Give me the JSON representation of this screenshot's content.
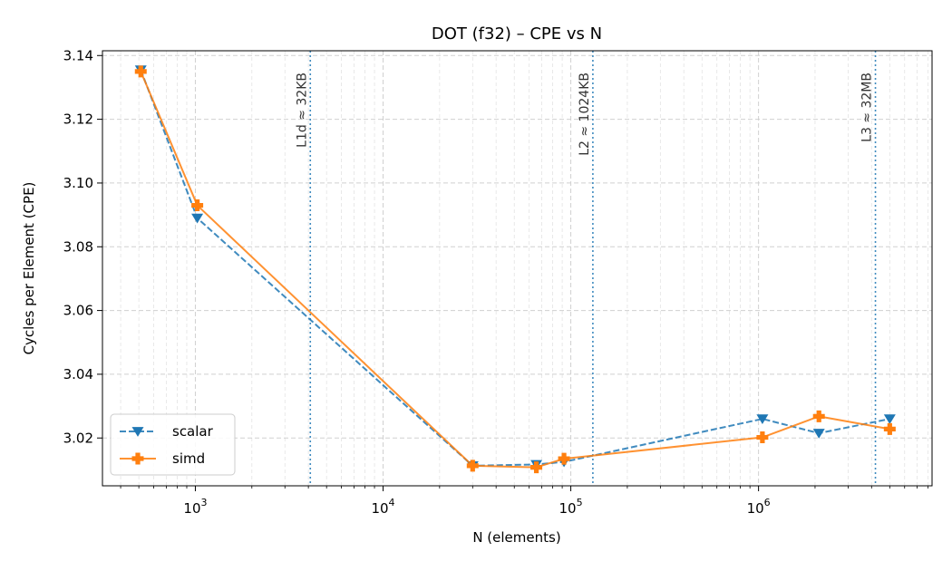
{
  "chart_data": {
    "type": "line",
    "title": "DOT (f32) – CPE vs N",
    "xlabel": "N (elements)",
    "ylabel": "Cycles per Element (CPE)",
    "xscale": "log",
    "xlim": [
      320,
      8400000
    ],
    "ylim": [
      3.005,
      3.1415
    ],
    "grid": true,
    "legend_position": "lower-left",
    "x_ticks": [
      {
        "value": 1000,
        "base": "10",
        "exp": "3"
      },
      {
        "value": 10000,
        "base": "10",
        "exp": "4"
      },
      {
        "value": 100000,
        "base": "10",
        "exp": "5"
      },
      {
        "value": 1000000,
        "base": "10",
        "exp": "6"
      }
    ],
    "y_ticks": [
      {
        "value": 3.02,
        "label": "3.02"
      },
      {
        "value": 3.04,
        "label": "3.04"
      },
      {
        "value": 3.06,
        "label": "3.06"
      },
      {
        "value": 3.08,
        "label": "3.08"
      },
      {
        "value": 3.1,
        "label": "3.10"
      },
      {
        "value": 3.12,
        "label": "3.12"
      },
      {
        "value": 3.14,
        "label": "3.14"
      }
    ],
    "series": [
      {
        "name": "scalar",
        "color": "#1f77b4",
        "line_style": "dashed",
        "marker": "triangle-down",
        "x": [
          512,
          1024,
          30000,
          65536,
          92000,
          1048576,
          2097152,
          5000000
        ],
        "y": [
          3.1355,
          3.089,
          3.0113,
          3.0117,
          3.0125,
          3.026,
          3.0215,
          3.026
        ]
      },
      {
        "name": "simd",
        "color": "#ff7f0e",
        "line_style": "solid",
        "marker": "plus",
        "x": [
          512,
          1024,
          30000,
          65536,
          92000,
          1048576,
          2097152,
          5000000
        ],
        "y": [
          3.135,
          3.093,
          3.0113,
          3.0108,
          3.0135,
          3.0202,
          3.0268,
          3.0228
        ]
      }
    ],
    "reference_lines": [
      {
        "x": 4096,
        "label": "L1d ≈ 32KB"
      },
      {
        "x": 131072,
        "label": "L2  ≈ 1024KB"
      },
      {
        "x": 4194304,
        "label": "L3  ≈ 32MB"
      }
    ]
  }
}
